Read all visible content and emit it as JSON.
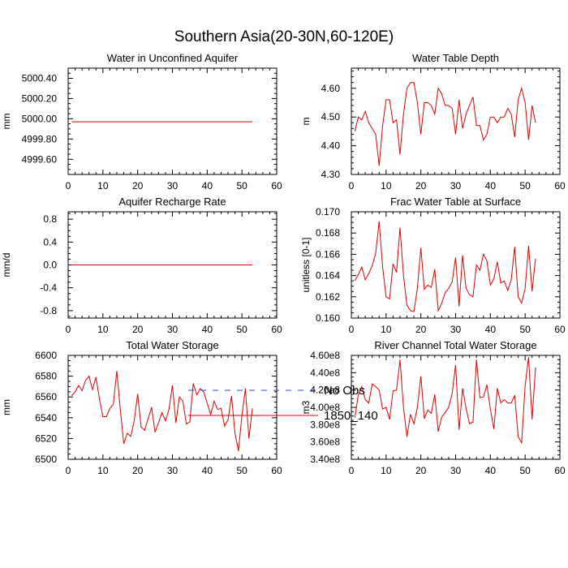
{
  "title": "Southern Asia(20-30N,60-120E)",
  "legend": [
    {
      "label": "No Obs",
      "color": "#3344cc",
      "dash": "dashed"
    },
    {
      "label": "1850_140",
      "color": "#e00000",
      "dash": "solid"
    }
  ],
  "chart_data": [
    {
      "type": "line",
      "title": "Water in Unconfined Aquifer",
      "xlabel": "",
      "ylabel": "mm",
      "xlim": [
        0,
        60
      ],
      "ylim": [
        4999.45,
        5000.5
      ],
      "xticks": [
        0,
        10,
        20,
        30,
        40,
        50,
        60
      ],
      "yticks": [
        4999.6,
        4999.8,
        5000.0,
        5000.2,
        5000.4
      ],
      "ytick_labels": [
        "4999.60",
        "4999.80",
        "5000.00",
        "5000.20",
        "5000.40"
      ],
      "yminor": [
        4999.5,
        4999.55,
        4999.65,
        4999.7,
        4999.75,
        4999.85,
        4999.9,
        4999.95,
        5000.05,
        5000.1,
        5000.15,
        5000.25,
        5000.3,
        5000.35,
        5000.45,
        5000.5
      ],
      "series": [
        {
          "name": "1850_140",
          "x": [
            1,
            53
          ],
          "values": [
            4999.97,
            4999.97
          ]
        }
      ]
    },
    {
      "type": "line",
      "title": "Water Table Depth",
      "xlabel": "",
      "ylabel": "m",
      "xlim": [
        0,
        60
      ],
      "ylim": [
        4.3,
        4.67
      ],
      "xticks": [
        0,
        10,
        20,
        30,
        40,
        50,
        60
      ],
      "yticks": [
        4.3,
        4.4,
        4.5,
        4.6
      ],
      "ytick_labels": [
        "4.30",
        "4.40",
        "4.50",
        "4.60"
      ],
      "yminor": [
        4.32,
        4.34,
        4.36,
        4.38,
        4.42,
        4.44,
        4.46,
        4.48,
        4.52,
        4.54,
        4.56,
        4.58,
        4.62,
        4.64,
        4.66
      ],
      "series": [
        {
          "name": "1850_140",
          "x": [
            1,
            2,
            3,
            4,
            5,
            6,
            7,
            8,
            9,
            10,
            11,
            12,
            13,
            14,
            15,
            16,
            17,
            18,
            19,
            20,
            21,
            22,
            23,
            24,
            25,
            26,
            27,
            28,
            29,
            30,
            31,
            32,
            33,
            34,
            35,
            36,
            37,
            38,
            39,
            40,
            41,
            42,
            43,
            44,
            45,
            46,
            47,
            48,
            49,
            50,
            51,
            52,
            53
          ],
          "values": [
            4.45,
            4.5,
            4.49,
            4.52,
            4.48,
            4.46,
            4.44,
            4.33,
            4.47,
            4.56,
            4.56,
            4.48,
            4.49,
            4.37,
            4.51,
            4.6,
            4.62,
            4.62,
            4.55,
            4.44,
            4.55,
            4.55,
            4.54,
            4.51,
            4.6,
            4.58,
            4.54,
            4.54,
            4.53,
            4.44,
            4.56,
            4.46,
            4.51,
            4.54,
            4.57,
            4.47,
            4.47,
            4.42,
            4.44,
            4.5,
            4.5,
            4.48,
            4.5,
            4.5,
            4.53,
            4.51,
            4.43,
            4.56,
            4.6,
            4.55,
            4.42,
            4.54,
            4.48
          ]
        }
      ]
    },
    {
      "type": "line",
      "title": "Aquifer Recharge Rate",
      "xlabel": "",
      "ylabel": "mm/d",
      "xlim": [
        0,
        60
      ],
      "ylim": [
        -0.93,
        0.93
      ],
      "xticks": [
        0,
        10,
        20,
        30,
        40,
        50,
        60
      ],
      "yticks": [
        -0.8,
        -0.4,
        0.0,
        0.4,
        0.8
      ],
      "ytick_labels": [
        "-0.8",
        "-0.4",
        "0.0",
        "0.4",
        "0.8"
      ],
      "yminor": [
        -0.9,
        -0.7,
        -0.6,
        -0.5,
        -0.3,
        -0.2,
        -0.1,
        0.1,
        0.2,
        0.3,
        0.5,
        0.6,
        0.7,
        0.9
      ],
      "series": [
        {
          "name": "1850_140",
          "x": [
            1,
            53
          ],
          "values": [
            0.0,
            0.0
          ]
        }
      ]
    },
    {
      "type": "line",
      "title": "Frac Water Table at Surface",
      "xlabel": "",
      "ylabel": "unitless [0-1]",
      "xlim": [
        0,
        60
      ],
      "ylim": [
        0.16,
        0.17
      ],
      "xticks": [
        0,
        10,
        20,
        30,
        40,
        50,
        60
      ],
      "yticks": [
        0.16,
        0.162,
        0.164,
        0.166,
        0.168,
        0.17
      ],
      "ytick_labels": [
        "0.160",
        "0.162",
        "0.164",
        "0.166",
        "0.168",
        "0.170"
      ],
      "yminor": [
        0.1605,
        0.161,
        0.1615,
        0.1625,
        0.163,
        0.1635,
        0.1645,
        0.165,
        0.1655,
        0.1665,
        0.167,
        0.1675,
        0.1685,
        0.169,
        0.1695
      ],
      "series": [
        {
          "name": "1850_140",
          "x": [
            1,
            2,
            3,
            4,
            5,
            6,
            7,
            8,
            9,
            10,
            11,
            12,
            13,
            14,
            15,
            16,
            17,
            18,
            19,
            20,
            21,
            22,
            23,
            24,
            25,
            26,
            27,
            28,
            29,
            30,
            31,
            32,
            33,
            34,
            35,
            36,
            37,
            38,
            39,
            40,
            41,
            42,
            43,
            44,
            45,
            46,
            47,
            48,
            49,
            50,
            51,
            52,
            53
          ],
          "values": [
            0.1635,
            0.1641,
            0.1648,
            0.1636,
            0.1642,
            0.1649,
            0.1661,
            0.1691,
            0.1648,
            0.162,
            0.1618,
            0.1651,
            0.1643,
            0.1685,
            0.164,
            0.1612,
            0.1607,
            0.1606,
            0.1628,
            0.1666,
            0.1627,
            0.1631,
            0.1629,
            0.1646,
            0.1607,
            0.1614,
            0.1624,
            0.1628,
            0.1634,
            0.1657,
            0.1611,
            0.1659,
            0.1628,
            0.1622,
            0.162,
            0.165,
            0.1645,
            0.166,
            0.1654,
            0.1631,
            0.1637,
            0.1653,
            0.1633,
            0.1635,
            0.1626,
            0.1636,
            0.1667,
            0.162,
            0.1614,
            0.1628,
            0.1668,
            0.1625,
            0.1656
          ]
        }
      ]
    },
    {
      "type": "line",
      "title": "Total Water Storage",
      "xlabel": "",
      "ylabel": "mm",
      "xlim": [
        0,
        60
      ],
      "ylim": [
        6500,
        6600
      ],
      "xticks": [
        0,
        10,
        20,
        30,
        40,
        50,
        60
      ],
      "yticks": [
        6500,
        6520,
        6540,
        6560,
        6580,
        6600
      ],
      "ytick_labels": [
        "6500",
        "6520",
        "6540",
        "6560",
        "6580",
        "6600"
      ],
      "yminor": [
        6505,
        6510,
        6515,
        6525,
        6530,
        6535,
        6545,
        6550,
        6555,
        6565,
        6570,
        6575,
        6585,
        6590,
        6595
      ],
      "series": [
        {
          "name": "1850_140",
          "x": [
            1,
            2,
            3,
            4,
            5,
            6,
            7,
            8,
            9,
            10,
            11,
            12,
            13,
            14,
            15,
            16,
            17,
            18,
            19,
            20,
            21,
            22,
            23,
            24,
            25,
            26,
            27,
            28,
            29,
            30,
            31,
            32,
            33,
            34,
            35,
            36,
            37,
            38,
            39,
            40,
            41,
            42,
            43,
            44,
            45,
            46,
            47,
            48,
            49,
            50,
            51,
            52,
            53
          ],
          "values": [
            6561,
            6565,
            6571,
            6566,
            6576,
            6580,
            6567,
            6579,
            6558,
            6541,
            6541,
            6549,
            6553,
            6585,
            6548,
            6515,
            6525,
            6522,
            6537,
            6563,
            6531,
            6528,
            6539,
            6550,
            6526,
            6535,
            6545,
            6537,
            6548,
            6571,
            6535,
            6560,
            6556,
            6534,
            6536,
            6573,
            6562,
            6568,
            6565,
            6554,
            6543,
            6556,
            6548,
            6549,
            6532,
            6538,
            6561,
            6525,
            6508,
            6542,
            6568,
            6520,
            6549
          ]
        }
      ]
    },
    {
      "type": "line",
      "title": "River Channel Total Water Storage",
      "xlabel": "",
      "ylabel": "m3",
      "xlim": [
        0,
        60
      ],
      "ylim": [
        340000000,
        460000000
      ],
      "xticks": [
        0,
        10,
        20,
        30,
        40,
        50,
        60
      ],
      "yticks": [
        340000000,
        360000000,
        380000000,
        400000000,
        420000000,
        440000000,
        460000000
      ],
      "ytick_labels": [
        "3.40e8",
        "3.60e8",
        "3.80e8",
        "4.00e8",
        "4.20e8",
        "4.40e8",
        "4.60e8"
      ],
      "yminor": [
        345000000,
        350000000,
        355000000,
        365000000,
        370000000,
        375000000,
        385000000,
        390000000,
        395000000,
        405000000,
        410000000,
        415000000,
        425000000,
        430000000,
        435000000,
        445000000,
        450000000,
        455000000
      ],
      "series": [
        {
          "name": "1850_140",
          "x": [
            1,
            2,
            3,
            4,
            5,
            6,
            7,
            8,
            9,
            10,
            11,
            12,
            13,
            14,
            15,
            16,
            17,
            18,
            19,
            20,
            21,
            22,
            23,
            24,
            25,
            26,
            27,
            28,
            29,
            30,
            31,
            32,
            33,
            34,
            35,
            36,
            37,
            38,
            39,
            40,
            41,
            42,
            43,
            44,
            45,
            46,
            47,
            48,
            49,
            50,
            51,
            52,
            53
          ],
          "values": [
            388000000,
            414000000,
            424000000,
            409000000,
            405000000,
            427000000,
            424000000,
            420000000,
            398000000,
            400000000,
            386000000,
            419000000,
            420000000,
            455000000,
            400000000,
            366000000,
            392000000,
            381000000,
            400000000,
            436000000,
            387000000,
            397000000,
            393000000,
            415000000,
            372000000,
            389000000,
            394000000,
            400000000,
            416000000,
            449000000,
            374000000,
            422000000,
            399000000,
            381000000,
            383000000,
            455000000,
            411000000,
            412000000,
            426000000,
            398000000,
            375000000,
            422000000,
            405000000,
            409000000,
            405000000,
            405000000,
            414000000,
            366000000,
            359000000,
            425000000,
            458000000,
            386000000,
            446000000
          ]
        }
      ]
    }
  ]
}
